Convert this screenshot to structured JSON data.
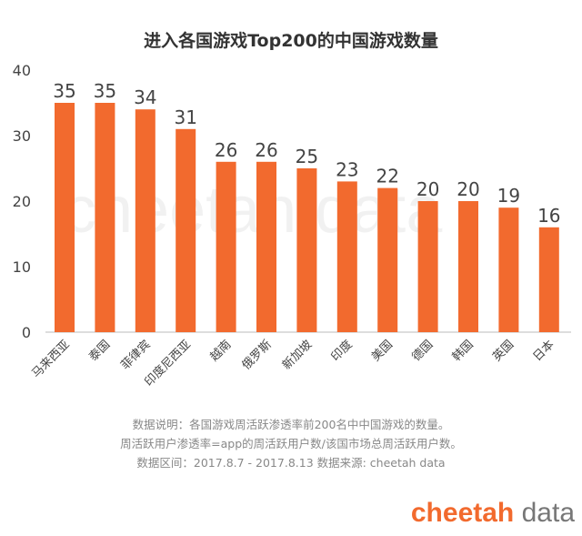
{
  "chart_data": {
    "type": "bar",
    "title": "进入各国游戏Top200的中国游戏数量",
    "categories": [
      "马来西亚",
      "泰国",
      "菲律宾",
      "印度尼西亚",
      "越南",
      "俄罗斯",
      "新加坡",
      "印度",
      "美国",
      "德国",
      "韩国",
      "英国",
      "日本"
    ],
    "values": [
      35,
      35,
      34,
      31,
      26,
      26,
      25,
      23,
      22,
      20,
      20,
      19,
      16
    ],
    "ylim": [
      0,
      40
    ],
    "yticks": [
      0,
      10,
      20,
      30,
      40
    ],
    "xlabel": "",
    "ylabel": "",
    "grid": false,
    "bar_color": "#f26a2e"
  },
  "notes": [
    "数据说明：各国游戏周活跃渗透率前200名中中国游戏的数量。",
    "周活跃用户渗透率=app的周活跃用户数/该国市场总周活跃用户数。",
    "数据区间：2017.8.7 - 2017.8.13 数据来源: cheetah data"
  ],
  "logo": {
    "brand": "cheetah",
    "suffix": "data"
  },
  "watermark": "cheetah data"
}
